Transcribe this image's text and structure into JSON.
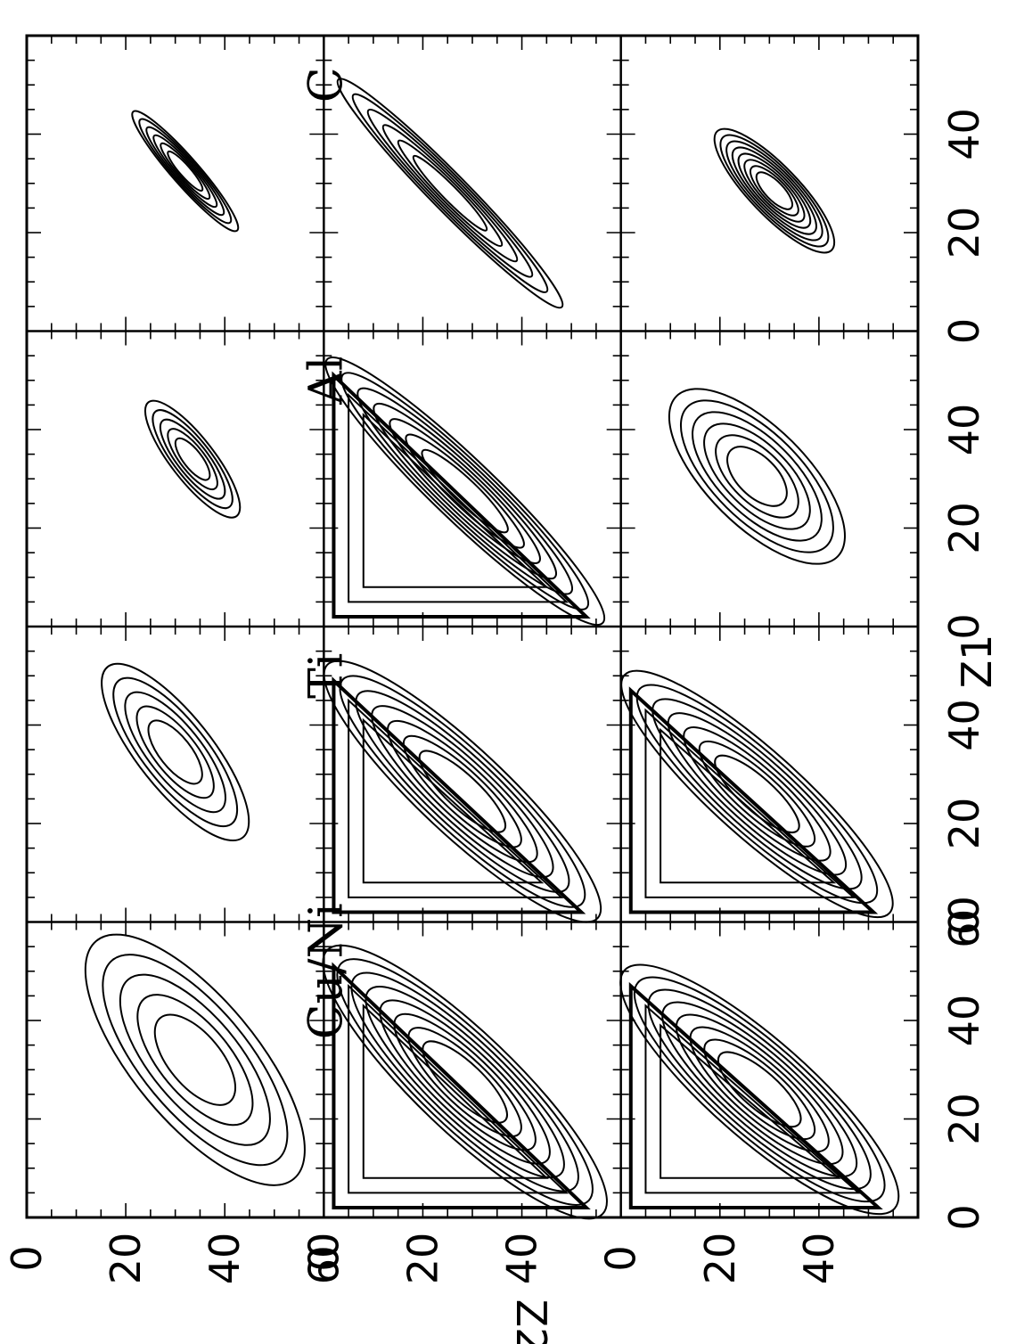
{
  "chart_data": {
    "type": "contour",
    "xlabel": "Z1",
    "ylabel": "Z2",
    "xlim": [
      0,
      60
    ],
    "ylim": [
      0,
      60
    ],
    "x_ticks": [
      "0",
      "20",
      "40",
      "60"
    ],
    "y_ticks": [
      "0",
      "20",
      "40",
      "60"
    ],
    "columns": [
      "C",
      "Al",
      "Ti",
      "Cu/Ni"
    ],
    "rows": 3,
    "panels": [
      {
        "row": 0,
        "col": 0,
        "target": "C",
        "ridge": [
          [
            21,
            42
          ],
          [
            44,
            22
          ]
        ],
        "width": 2.2,
        "levels": 6
      },
      {
        "row": 0,
        "col": 1,
        "target": "Al",
        "ridge": [
          [
            23,
            42
          ],
          [
            45,
            25
          ]
        ],
        "width": 3.5,
        "levels": 5
      },
      {
        "row": 0,
        "col": 2,
        "target": "Ti",
        "ridge": [
          [
            18,
            43
          ],
          [
            51,
            17
          ]
        ],
        "width": 6,
        "levels": 5
      },
      {
        "row": 0,
        "col": 3,
        "target": "Cu/Ni",
        "ridge": [
          [
            9,
            53
          ],
          [
            55,
            15
          ]
        ],
        "width": 10,
        "levels": 5
      },
      {
        "row": 1,
        "col": 0,
        "target": "C",
        "ridge": [
          [
            6,
            47
          ],
          [
            50,
            4
          ]
        ],
        "width": 3,
        "levels": 6
      },
      {
        "row": 1,
        "col": 1,
        "target": "Al",
        "ridge": [
          [
            2,
            55
          ],
          [
            53,
            2
          ]
        ],
        "width": 5,
        "levels": 7,
        "triangle": true
      },
      {
        "row": 1,
        "col": 2,
        "target": "Ti",
        "ridge": [
          [
            2,
            54
          ],
          [
            51,
            2
          ]
        ],
        "width": 7,
        "levels": 7,
        "triangle": true
      },
      {
        "row": 1,
        "col": 3,
        "target": "Cu/Ni",
        "ridge": [
          [
            2,
            55
          ],
          [
            53,
            2
          ]
        ],
        "width": 8,
        "levels": 8,
        "triangle": true
      },
      {
        "row": 2,
        "col": 0,
        "target": "C",
        "ridge": [
          [
            17,
            42
          ],
          [
            40,
            20
          ]
        ],
        "width": 4,
        "levels": 8
      },
      {
        "row": 2,
        "col": 1,
        "target": "Al",
        "ridge": [
          [
            15,
            43
          ],
          [
            46,
            12
          ]
        ],
        "width": 8,
        "levels": 6
      },
      {
        "row": 2,
        "col": 2,
        "target": "Ti",
        "ridge": [
          [
            3,
            53
          ],
          [
            49,
            2
          ]
        ],
        "width": 7,
        "levels": 7,
        "triangle": true
      },
      {
        "row": 2,
        "col": 3,
        "target": "Cu/Ni",
        "ridge": [
          [
            3,
            54
          ],
          [
            49,
            2
          ]
        ],
        "width": 8,
        "levels": 8,
        "triangle": true
      }
    ]
  }
}
